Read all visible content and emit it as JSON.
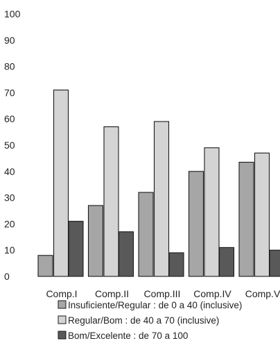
{
  "chart_data": {
    "type": "bar",
    "title": "",
    "xlabel": "",
    "ylabel": "",
    "ylim": [
      0,
      100
    ],
    "yticks": [
      0,
      10,
      20,
      30,
      40,
      50,
      60,
      70,
      80,
      90,
      100
    ],
    "grid": false,
    "legend_position": "bottom",
    "categories": [
      "Comp.I",
      "Comp.II",
      "Comp.III",
      "Comp.IV",
      "Comp.V"
    ],
    "series": [
      {
        "name": "Insuficiente/Regular : de 0 a 40 (inclusive)",
        "color": "#a6a6a6",
        "values": [
          8,
          27,
          32,
          40,
          43.5
        ]
      },
      {
        "name": "Regular/Bom : de 40 a 70 (inclusive)",
        "color": "#d4d4d4",
        "values": [
          71,
          57,
          59,
          49,
          47
        ]
      },
      {
        "name": "Bom/Excelente : de 70 a 100",
        "color": "#595959",
        "values": [
          21,
          17,
          9,
          11,
          10
        ]
      }
    ]
  }
}
